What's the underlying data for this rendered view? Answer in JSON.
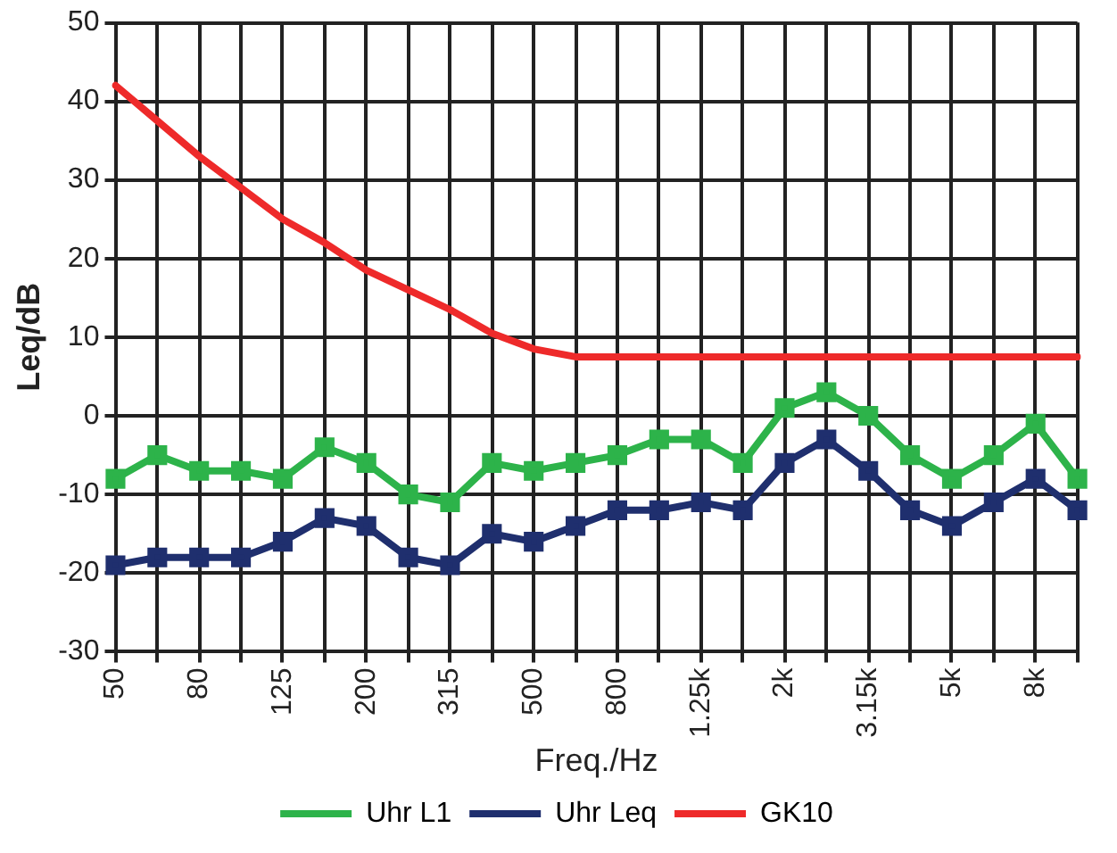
{
  "chart_data": {
    "type": "line",
    "xlabel": "Freq./Hz",
    "ylabel": "Leq/dB",
    "categories": [
      "50",
      null,
      "80",
      null,
      "125",
      null,
      "200",
      null,
      "315",
      null,
      "500",
      null,
      "800",
      null,
      "1.25k",
      null,
      "2k",
      null,
      "3.15k",
      null,
      "5k",
      null,
      "8k",
      null
    ],
    "series": [
      {
        "name": "Uhr L1",
        "color": "#2db34a",
        "marker": "square",
        "values": [
          -8,
          -5,
          -7,
          -7,
          -8,
          -4,
          -6,
          -10,
          -11,
          -6,
          -7,
          -6,
          -5,
          -3,
          -3,
          -6,
          1,
          3,
          0,
          -5,
          -8,
          -5,
          -1,
          -8
        ]
      },
      {
        "name": "Uhr Leq",
        "color": "#1f2f6e",
        "marker": "square",
        "values": [
          -19,
          -18,
          -18,
          -18,
          -16,
          -13,
          -14,
          -18,
          -19,
          -15,
          -16,
          -14,
          -12,
          -12,
          -11,
          -12,
          -6,
          -3,
          -7,
          -12,
          -14,
          -11,
          -8,
          -12
        ]
      },
      {
        "name": "GK10",
        "color": "#ee2a2a",
        "marker": "none",
        "values": [
          42,
          37.5,
          33,
          29,
          25,
          22,
          18.5,
          16,
          13.5,
          10.5,
          8.5,
          7.5,
          7.5,
          7.5,
          7.5,
          7.5,
          7.5,
          7.5,
          7.5,
          7.5,
          7.5,
          7.5,
          7.5,
          7.5
        ]
      }
    ],
    "ylim": [
      -30,
      50
    ],
    "yticks": [
      -30,
      -20,
      -10,
      0,
      10,
      20,
      30,
      40,
      50
    ],
    "grid": true,
    "legend": "bottom"
  }
}
